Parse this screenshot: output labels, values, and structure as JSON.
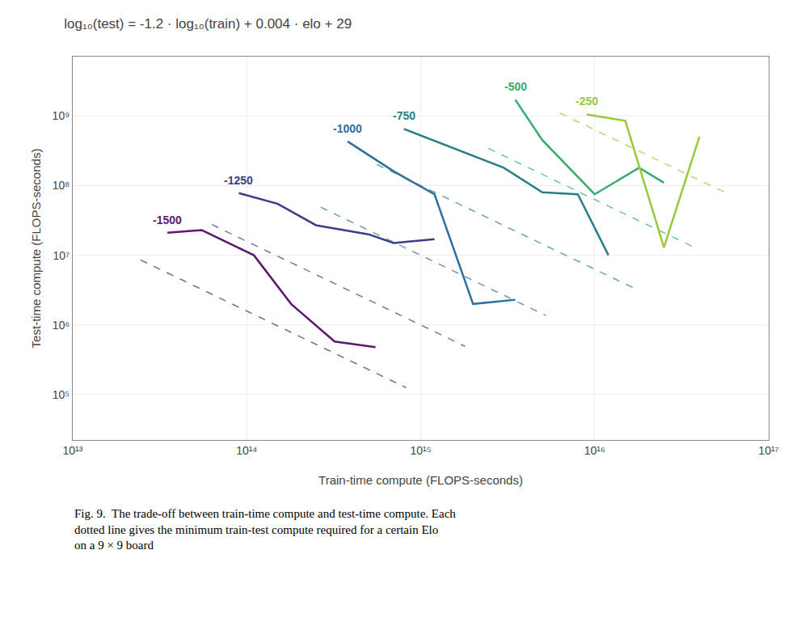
{
  "chart_data": {
    "type": "line",
    "title": "log₁₀(test) = -1.2 · log₁₀(train) + 0.004 · elo + 29",
    "xlabel": "Train-time compute (FLOPS-seconds)",
    "ylabel": "Test-time compute (FLOPS-seconds)",
    "annotations": [
      "Fig. 9.  The trade-off between train-time compute and test-time compute. Each\ndotted line gives the minimum train-test compute required for a certain Elo\non a 9 × 9 board"
    ],
    "log": true,
    "grid": true,
    "xlim": [
      10000000000000.0,
      1e+17
    ],
    "ylim": [
      22387.2113856834,
      7079457843.84138
    ],
    "xticks": [
      {
        "value": 10000000000000.0,
        "label": "10¹³"
      },
      {
        "value": 100000000000000.0,
        "label": "10¹⁴"
      },
      {
        "value": 1000000000000000.0,
        "label": "10¹⁵"
      },
      {
        "value": 1e+16,
        "label": "10¹⁶"
      },
      {
        "value": 1e+17,
        "label": "10¹⁷"
      }
    ],
    "yticks": [
      {
        "value": 100000.0,
        "label": "10⁵"
      },
      {
        "value": 1000000.0,
        "label": "10⁶"
      },
      {
        "value": 10000000.0,
        "label": "10⁷"
      },
      {
        "value": 100000000.0,
        "label": "10⁸"
      },
      {
        "value": 1000000000.0,
        "label": "10⁹"
      }
    ],
    "series": [
      {
        "color": "#5c1a6b",
        "line_style": "dashed",
        "x": [
          24500000000000.0,
          825000000000000.0
        ],
        "values": [
          8570000.0,
          126000.0
        ]
      },
      {
        "name": "-1500",
        "color": "#5c1a6b",
        "line_style": "solid",
        "x": [
          35000000000000.0,
          55000000000000.0,
          110000000000000.0,
          180000000000000.0,
          320000000000000.0,
          550000000000000.0
        ],
        "values": [
          21000000.0,
          23000000.0,
          10000000.0,
          2000000.0,
          580000.0,
          480000.0
        ]
      },
      {
        "color": "#3c3d8a",
        "line_style": "dashed",
        "x": [
          63000000000000.0,
          1800000000000000.0
        ],
        "values": [
          27590000.0,
          493900.0
        ]
      },
      {
        "name": "-1250",
        "color": "#3c3d8a",
        "line_style": "solid",
        "x": [
          90000000000000.0,
          150000000000000.0,
          250000000000000.0,
          500000000000000.0,
          700000000000000.0,
          1200000000000000.0
        ],
        "values": [
          78000000.0,
          55000000.0,
          27000000.0,
          20000000.0,
          15000000.0,
          17000000.0
        ]
      },
      {
        "color": "#2d6fa0",
        "line_style": "dashed",
        "x": [
          266000000000000.0,
          5250000000000000.0
        ],
        "values": [
          48990000.0,
          1367000.0
        ]
      },
      {
        "name": "-1000",
        "color": "#2d6fa0",
        "line_style": "solid",
        "x": [
          380000000000000.0,
          700000000000000.0,
          1200000000000000.0,
          2000000000000000.0,
          3500000000000000.0
        ],
        "values": [
          430000000.0,
          160000000.0,
          75000000.0,
          2000000.0,
          2300000.0
        ]
      },
      {
        "color": "#297f87",
        "line_style": "dashed",
        "x": [
          560000000000000.0,
          1.8e+16
        ],
        "values": [
          200500000.0,
          3117000.0
        ]
      },
      {
        "name": "-750",
        "color": "#297f87",
        "line_style": "solid",
        "x": [
          800000000000000.0,
          1500000000000000.0,
          3000000000000000.0,
          5000000000000000.0,
          8000000000000000.0,
          1.2e+16
        ],
        "values": [
          650000000.0,
          350000000.0,
          180000000.0,
          80000000.0,
          75000000.0,
          10000000.0
        ]
      },
      {
        "color": "#38ab6e",
        "line_style": "dashed",
        "x": [
          2450000000000000.0,
          3.75e+16
        ],
        "values": [
          341200000.0,
          12920000.0
        ]
      },
      {
        "name": "-500",
        "color": "#38ab6e",
        "line_style": "solid",
        "x": [
          3500000000000000.0,
          5000000000000000.0,
          1e+16,
          1.8e+16,
          2.5e+16
        ],
        "values": [
          1700000000.0,
          450000000.0,
          75000000.0,
          180000000.0,
          110000000.0
        ]
      },
      {
        "color": "#9bc83a",
        "line_style": "dashed",
        "x": [
          6300000000000000.0,
          6e+16
        ],
        "values": [
          1098000000.0,
          73490000.0
        ]
      },
      {
        "name": "-250",
        "color": "#9bc83a",
        "line_style": "solid",
        "x": [
          9000000000000000.0,
          1.5e+16,
          2.5e+16,
          4e+16
        ],
        "values": [
          1050000000.0,
          850000000.0,
          13000000.0,
          500000000.0
        ]
      }
    ]
  }
}
